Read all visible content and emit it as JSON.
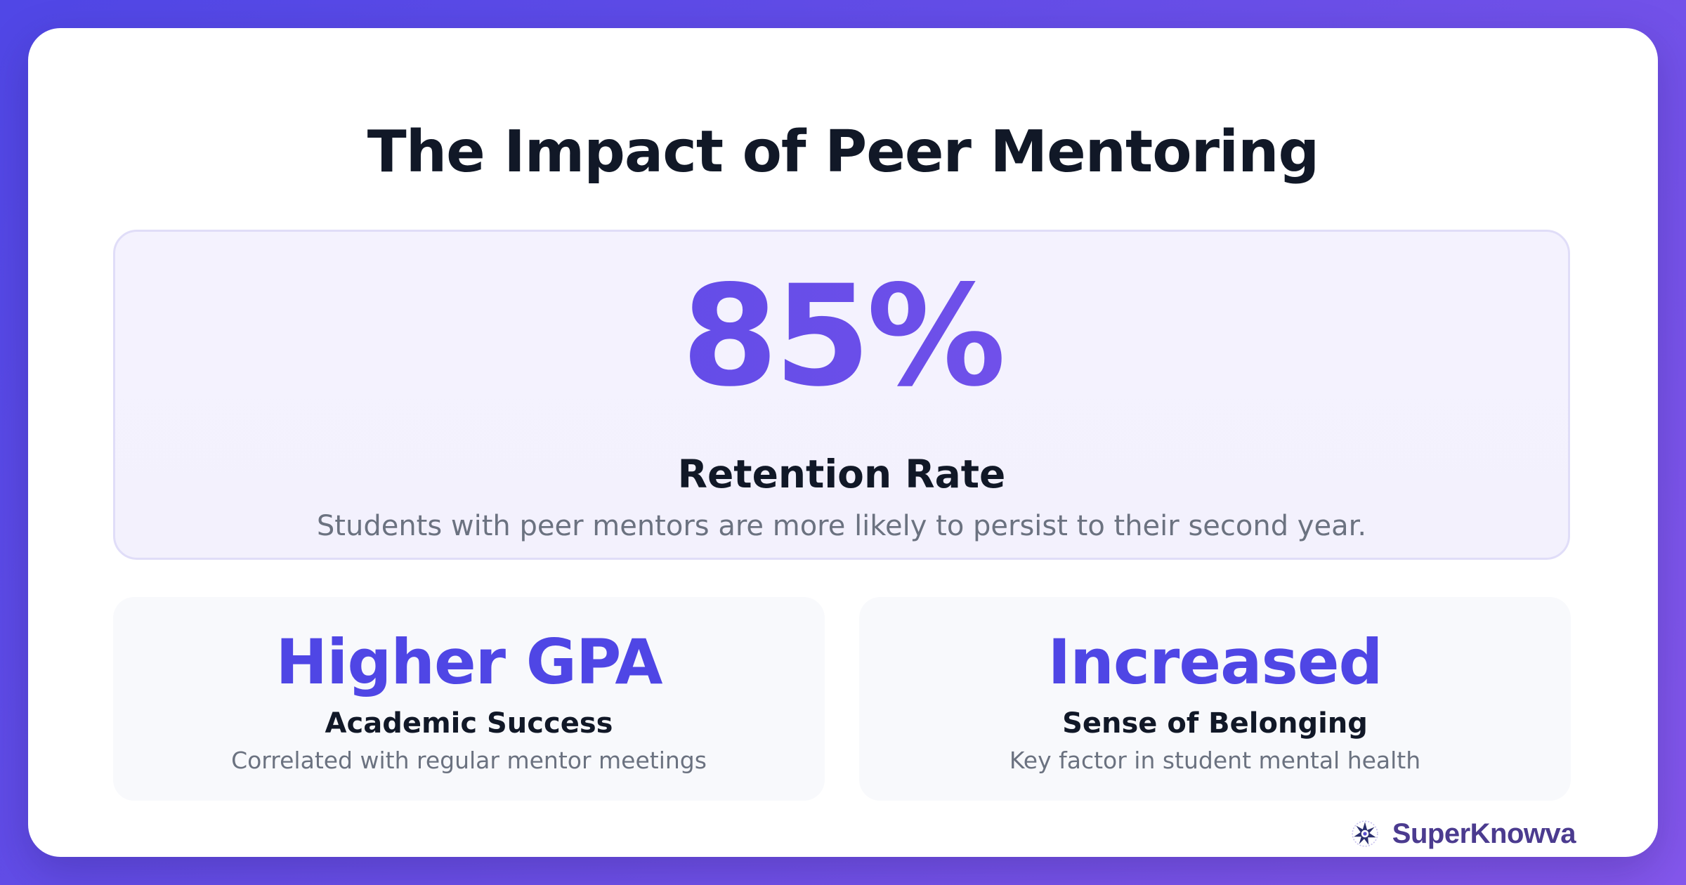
{
  "title": "The Impact of Peer Mentoring",
  "hero": {
    "stat": "85%",
    "label": "Retention Rate",
    "description": "Students with peer mentors are more likely to persist to their second year."
  },
  "cards": [
    {
      "stat": "Higher GPA",
      "label": "Academic Success",
      "description": "Correlated with regular mentor meetings"
    },
    {
      "stat": "Increased",
      "label": "Sense of Belonging",
      "description": "Key factor in student mental health"
    }
  ],
  "brand": {
    "name": "SuperKnowva",
    "icon": "starburst-logo-icon"
  },
  "colors": {
    "accent": "#4f46e5",
    "accent_light": "#8a5bee",
    "text_dark": "#111827",
    "text_muted": "#6b7280",
    "brand": "#4b3b8f"
  }
}
